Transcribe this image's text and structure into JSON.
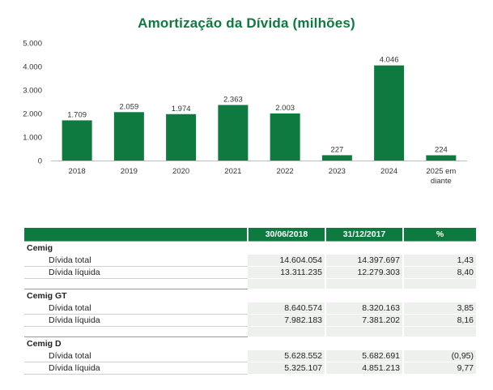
{
  "chart_data": {
    "type": "bar",
    "title": "Amortização da Dívida (milhões)",
    "categories": [
      "2018",
      "2019",
      "2020",
      "2021",
      "2022",
      "2023",
      "2024",
      "2025 em diante"
    ],
    "category_lines": [
      [
        "2018"
      ],
      [
        "2019"
      ],
      [
        "2020"
      ],
      [
        "2021"
      ],
      [
        "2022"
      ],
      [
        "2023"
      ],
      [
        "2024"
      ],
      [
        "2025 em",
        "diante"
      ]
    ],
    "values": [
      1709,
      2059,
      1974,
      2363,
      2003,
      227,
      4046,
      224
    ],
    "value_labels": [
      "1.709",
      "2.059",
      "1.974",
      "2.363",
      "2.003",
      "227",
      "4.046",
      "224"
    ],
    "ylim": [
      0,
      5000
    ],
    "yticks": [
      0,
      1000,
      2000,
      3000,
      4000,
      5000
    ],
    "ytick_labels": [
      "0",
      "1.000",
      "2.000",
      "3.000",
      "4.000",
      "5.000"
    ],
    "bar_color": "#0e7a3f",
    "grid": false,
    "legend": "none"
  },
  "table": {
    "headers": [
      "",
      "30/06/2018",
      "31/12/2017",
      "%"
    ],
    "sections": [
      {
        "name": "Cemig",
        "rows": [
          {
            "label": "Dívida total",
            "v1": "14.604.054",
            "v2": "14.397.697",
            "pct": "1,43"
          },
          {
            "label": "Dívida líquida",
            "v1": "13.311.235",
            "v2": "12.279.303",
            "pct": "8,40"
          }
        ]
      },
      {
        "name": "Cemig GT",
        "rows": [
          {
            "label": "Dívida total",
            "v1": "8.640.574",
            "v2": "8.320.163",
            "pct": "3,85"
          },
          {
            "label": "Dívida líquida",
            "v1": "7.982.183",
            "v2": "7.381.202",
            "pct": "8,16"
          }
        ]
      },
      {
        "name": "Cemig D",
        "rows": [
          {
            "label": "Dívida total",
            "v1": "5.628.552",
            "v2": "5.682.691",
            "pct": "(0,95)"
          },
          {
            "label": "Dívida líquida",
            "v1": "5.325.107",
            "v2": "4.851.213",
            "pct": "9,77"
          }
        ]
      }
    ]
  }
}
